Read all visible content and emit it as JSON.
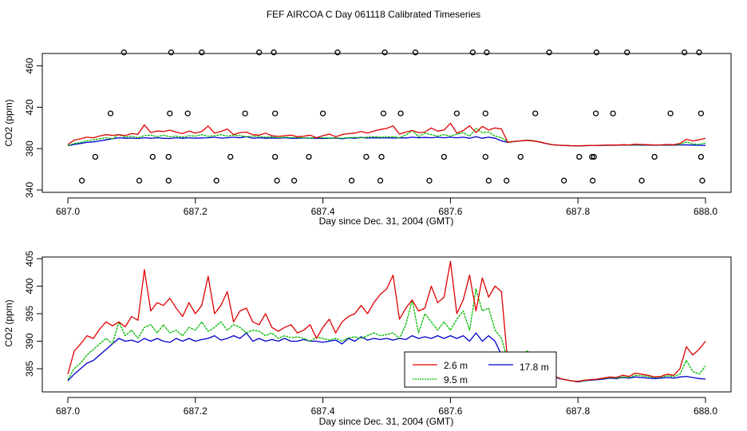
{
  "page_title": "FEF AIRCOA C  Day 061118  Calibrated Timeseries",
  "colors": {
    "red": "#e00000",
    "green": "#00bb00",
    "blue": "#0000cc",
    "marker": "#000000"
  },
  "chart_data": [
    {
      "type": "line",
      "panel": "top",
      "xlabel": "Day since Dec. 31, 2004 (GMT)",
      "ylabel": "CO2 (ppm)",
      "xlim": [
        687.0,
        688.0
      ],
      "ylim": [
        340,
        472
      ],
      "xticks": [
        687.0,
        687.2,
        687.4,
        687.6,
        687.8,
        688.0
      ],
      "xtick_labels": [
        "687.0",
        "687.2",
        "687.4",
        "687.6",
        "687.8",
        "688.0"
      ],
      "yticks": [
        340,
        380,
        420,
        460
      ],
      "ytick_labels": [
        "340",
        "380",
        "420",
        "460"
      ],
      "scatter_markers": {
        "name": "calibration points",
        "points": [
          [
            687.088,
            473
          ],
          [
            687.162,
            473
          ],
          [
            687.21,
            473
          ],
          [
            687.3,
            473
          ],
          [
            687.323,
            473
          ],
          [
            687.423,
            473
          ],
          [
            687.497,
            473
          ],
          [
            687.545,
            473
          ],
          [
            687.635,
            473
          ],
          [
            687.657,
            473
          ],
          [
            687.755,
            473
          ],
          [
            687.829,
            473
          ],
          [
            687.877,
            473
          ],
          [
            687.967,
            473
          ],
          [
            687.99,
            473
          ],
          [
            687.067,
            414
          ],
          [
            687.16,
            414
          ],
          [
            687.188,
            414
          ],
          [
            687.278,
            414
          ],
          [
            687.325,
            414
          ],
          [
            687.4,
            414
          ],
          [
            687.495,
            414
          ],
          [
            687.522,
            414
          ],
          [
            687.61,
            414
          ],
          [
            687.655,
            414
          ],
          [
            687.733,
            414
          ],
          [
            687.828,
            414
          ],
          [
            687.855,
            414
          ],
          [
            687.945,
            414
          ],
          [
            687.993,
            414
          ],
          [
            687.043,
            372
          ],
          [
            687.133,
            372
          ],
          [
            687.158,
            372
          ],
          [
            687.255,
            372
          ],
          [
            687.325,
            372
          ],
          [
            687.378,
            372
          ],
          [
            687.468,
            372
          ],
          [
            687.492,
            372
          ],
          [
            687.59,
            372
          ],
          [
            687.655,
            372
          ],
          [
            687.71,
            372
          ],
          [
            687.802,
            372
          ],
          [
            687.822,
            372
          ],
          [
            687.825,
            372
          ],
          [
            687.92,
            372
          ],
          [
            687.993,
            372
          ],
          [
            687.022,
            349
          ],
          [
            687.112,
            349
          ],
          [
            687.158,
            349
          ],
          [
            687.233,
            349
          ],
          [
            687.328,
            349
          ],
          [
            687.355,
            349
          ],
          [
            687.445,
            349
          ],
          [
            687.49,
            349
          ],
          [
            687.567,
            349
          ],
          [
            687.66,
            349
          ],
          [
            687.688,
            349
          ],
          [
            687.778,
            349
          ],
          [
            687.823,
            349
          ],
          [
            687.9,
            349
          ],
          [
            687.995,
            349
          ]
        ]
      },
      "series_ref": "shared_series"
    },
    {
      "type": "line",
      "panel": "bottom",
      "xlabel": "Day since Dec. 31, 2004 (GMT)",
      "ylabel": "CO2 (ppm)",
      "xlim": [
        687.0,
        688.0
      ],
      "ylim": [
        381.8,
        405.3
      ],
      "xticks": [
        687.0,
        687.2,
        687.4,
        687.6,
        687.8,
        688.0
      ],
      "xtick_labels": [
        "687.0",
        "687.2",
        "687.4",
        "687.6",
        "687.8",
        "688.0"
      ],
      "yticks": [
        385,
        390,
        395,
        400,
        405
      ],
      "ytick_labels": [
        "385",
        "390",
        "395",
        "400",
        "405"
      ],
      "legend": {
        "position": "bottom-center",
        "entries": [
          "2.6 m",
          "9.5 m",
          "17.8 m"
        ]
      },
      "series_ref": "shared_series"
    }
  ],
  "shared_series": {
    "x": [
      687.0,
      687.01,
      687.02,
      687.03,
      687.04,
      687.05,
      687.06,
      687.07,
      687.08,
      687.09,
      687.1,
      687.11,
      687.12,
      687.13,
      687.14,
      687.15,
      687.16,
      687.17,
      687.18,
      687.19,
      687.2,
      687.21,
      687.22,
      687.23,
      687.24,
      687.25,
      687.26,
      687.27,
      687.28,
      687.29,
      687.3,
      687.31,
      687.32,
      687.33,
      687.34,
      687.35,
      687.36,
      687.37,
      687.38,
      687.39,
      687.4,
      687.41,
      687.42,
      687.43,
      687.44,
      687.45,
      687.46,
      687.47,
      687.48,
      687.49,
      687.5,
      687.51,
      687.52,
      687.53,
      687.54,
      687.55,
      687.56,
      687.57,
      687.58,
      687.59,
      687.6,
      687.61,
      687.62,
      687.63,
      687.64,
      687.65,
      687.66,
      687.67,
      687.68,
      687.69,
      687.7,
      687.71,
      687.72,
      687.73,
      687.74,
      687.75,
      687.76,
      687.77,
      687.78,
      687.79,
      687.8,
      687.81,
      687.82,
      687.83,
      687.84,
      687.85,
      687.86,
      687.87,
      687.88,
      687.89,
      687.9,
      687.91,
      687.92,
      687.93,
      687.94,
      687.95,
      687.96,
      687.97,
      687.98,
      687.99,
      688.0
    ],
    "series": [
      {
        "name": "2.6 m",
        "color": "#e00000",
        "values": [
          384.0,
          388.2,
          389.5,
          391.0,
          390.5,
          392.2,
          393.5,
          392.8,
          393.5,
          392.6,
          394.5,
          393.8,
          403.0,
          395.5,
          397.0,
          396.5,
          397.8,
          396.0,
          394.5,
          397.0,
          395.0,
          396.5,
          401.8,
          395.0,
          396.5,
          399.0,
          393.5,
          395.5,
          396.0,
          393.5,
          393.0,
          395.0,
          392.5,
          391.8,
          392.5,
          393.0,
          391.5,
          392.0,
          393.0,
          390.5,
          392.5,
          394.0,
          391.5,
          393.5,
          394.5,
          395.0,
          396.5,
          395.0,
          397.0,
          398.5,
          399.5,
          402.0,
          394.0,
          396.0,
          397.5,
          395.5,
          396.0,
          400.0,
          397.0,
          398.0,
          404.5,
          395.0,
          397.5,
          402.0,
          395.5,
          401.5,
          398.0,
          400.0,
          399.0,
          386.0,
          387.0,
          387.5,
          388.0,
          387.3,
          386.5,
          385.0,
          383.8,
          383.3,
          383.0,
          382.8,
          382.7,
          382.9,
          383.0,
          383.1,
          383.3,
          383.5,
          383.4,
          383.8,
          383.6,
          384.2,
          384.0,
          383.8,
          383.5,
          383.6,
          384.0,
          383.8,
          385.0,
          389.0,
          387.5,
          388.5,
          390.0
        ]
      },
      {
        "name": "9.5 m",
        "color": "#00bb00",
        "values": [
          383.0,
          385.0,
          386.0,
          387.5,
          388.5,
          389.5,
          390.5,
          389.5,
          393.5,
          391.0,
          392.0,
          390.5,
          392.5,
          393.0,
          391.5,
          393.0,
          391.5,
          392.0,
          391.0,
          392.5,
          392.0,
          393.5,
          391.8,
          392.5,
          393.5,
          392.0,
          393.0,
          392.5,
          391.5,
          392.0,
          391.8,
          391.0,
          391.5,
          390.5,
          391.0,
          390.6,
          390.8,
          390.5,
          390.0,
          390.7,
          390.5,
          390.2,
          390.5,
          390.0,
          390.6,
          390.8,
          390.5,
          391.0,
          391.5,
          391.0,
          391.2,
          391.5,
          390.5,
          393.0,
          397.5,
          391.5,
          395.0,
          393.5,
          392.0,
          393.5,
          392.0,
          394.0,
          395.5,
          392.0,
          399.5,
          395.5,
          396.0,
          392.0,
          390.5,
          386.5,
          387.0,
          387.5,
          388.2,
          387.8,
          386.5,
          385.0,
          383.8,
          383.3,
          383.0,
          382.8,
          382.7,
          382.8,
          383.0,
          383.1,
          383.2,
          383.4,
          383.3,
          383.5,
          383.4,
          383.8,
          383.7,
          383.6,
          383.4,
          383.5,
          383.7,
          383.6,
          384.0,
          386.5,
          384.5,
          384.0,
          385.5
        ]
      },
      {
        "name": "17.8 m",
        "color": "#0000cc",
        "values": [
          382.8,
          384.0,
          385.0,
          386.0,
          386.5,
          387.5,
          388.5,
          389.5,
          390.5,
          390.0,
          390.2,
          389.8,
          390.5,
          390.0,
          390.5,
          390.0,
          389.8,
          390.5,
          390.0,
          390.5,
          390.0,
          390.3,
          390.5,
          391.0,
          390.2,
          390.5,
          391.0,
          390.5,
          391.5,
          390.0,
          390.5,
          390.0,
          390.3,
          390.0,
          390.5,
          390.0,
          390.0,
          390.3,
          390.0,
          390.0,
          389.8,
          390.0,
          390.2,
          389.5,
          390.5,
          390.0,
          390.8,
          390.2,
          390.5,
          390.3,
          390.5,
          390.2,
          390.5,
          390.3,
          391.0,
          390.5,
          390.8,
          390.5,
          391.0,
          390.5,
          391.0,
          390.5,
          391.0,
          390.0,
          391.5,
          390.0,
          391.0,
          390.0,
          387.5,
          386.0,
          386.8,
          387.5,
          388.0,
          387.5,
          386.3,
          384.8,
          383.7,
          383.2,
          383.0,
          382.8,
          382.6,
          382.8,
          382.9,
          383.0,
          383.1,
          383.3,
          383.2,
          383.4,
          383.3,
          383.5,
          383.4,
          383.3,
          383.2,
          383.3,
          383.4,
          383.3,
          383.5,
          383.6,
          383.4,
          383.2,
          383.1
        ]
      }
    ]
  }
}
